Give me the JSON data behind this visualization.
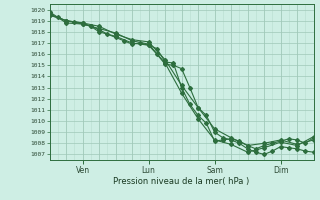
{
  "title": "Pression niveau de la mer( hPa )",
  "ylabel_values": [
    1007,
    1008,
    1009,
    1010,
    1011,
    1012,
    1013,
    1014,
    1015,
    1016,
    1017,
    1018,
    1019,
    1020
  ],
  "ylim": [
    1006.5,
    1020.5
  ],
  "xlim": [
    0,
    96
  ],
  "x_ticks": [
    12,
    36,
    60,
    84
  ],
  "x_tick_labels": [
    "Ven",
    "Lun",
    "Sam",
    "Dim"
  ],
  "background_color": "#ceeee4",
  "grid_color_major": "#a0c8b8",
  "grid_color_minor": "#b8ddd0",
  "line_color": "#2d6e3e",
  "series1": {
    "x": [
      0,
      3,
      6,
      9,
      12,
      15,
      18,
      21,
      24,
      27,
      30,
      33,
      36,
      39,
      42,
      45,
      48,
      51,
      54,
      57,
      60,
      63,
      66,
      69,
      72,
      75,
      78,
      81,
      84,
      87,
      90,
      93,
      96
    ],
    "y": [
      1019.5,
      1019.3,
      1019.0,
      1018.9,
      1018.8,
      1018.5,
      1018.2,
      1017.8,
      1017.5,
      1017.2,
      1016.9,
      1017.0,
      1016.8,
      1016.0,
      1015.1,
      1015.0,
      1014.7,
      1013.0,
      1011.2,
      1010.5,
      1009.0,
      1008.5,
      1008.3,
      1008.0,
      1007.5,
      1007.2,
      1007.0,
      1007.3,
      1007.7,
      1007.6,
      1007.5,
      1007.3,
      1007.2
    ]
  },
  "series2": {
    "x": [
      0,
      6,
      12,
      18,
      24,
      30,
      36,
      42,
      48,
      54,
      60,
      66,
      72,
      78,
      84,
      90,
      96
    ],
    "y": [
      1019.6,
      1019.0,
      1018.8,
      1018.5,
      1017.8,
      1017.3,
      1017.1,
      1015.5,
      1013.2,
      1011.2,
      1009.3,
      1008.5,
      1007.8,
      1008.0,
      1008.3,
      1007.9,
      1008.3
    ]
  },
  "series3": {
    "x": [
      0,
      6,
      12,
      18,
      24,
      30,
      36,
      42,
      48,
      54,
      60,
      66,
      72,
      78,
      84,
      90,
      96
    ],
    "y": [
      1019.8,
      1018.8,
      1018.7,
      1018.3,
      1017.9,
      1017.2,
      1016.9,
      1015.2,
      1012.5,
      1010.2,
      1008.3,
      1007.9,
      1007.2,
      1007.6,
      1008.1,
      1007.8,
      1008.6
    ]
  },
  "series4": {
    "x": [
      0,
      6,
      12,
      15,
      18,
      24,
      30,
      36,
      39,
      42,
      45,
      48,
      51,
      54,
      57,
      60,
      63,
      66,
      69,
      72,
      75,
      78,
      81,
      84,
      87,
      90,
      93,
      96
    ],
    "y": [
      1019.5,
      1019.0,
      1018.7,
      1018.5,
      1018.0,
      1017.6,
      1017.0,
      1016.8,
      1016.5,
      1015.3,
      1015.2,
      1013.0,
      1011.5,
      1010.5,
      1009.8,
      1008.2,
      1008.3,
      1008.4,
      1008.2,
      1007.8,
      1007.5,
      1007.8,
      1008.0,
      1008.2,
      1008.4,
      1008.3,
      1008.0,
      1008.5
    ]
  }
}
